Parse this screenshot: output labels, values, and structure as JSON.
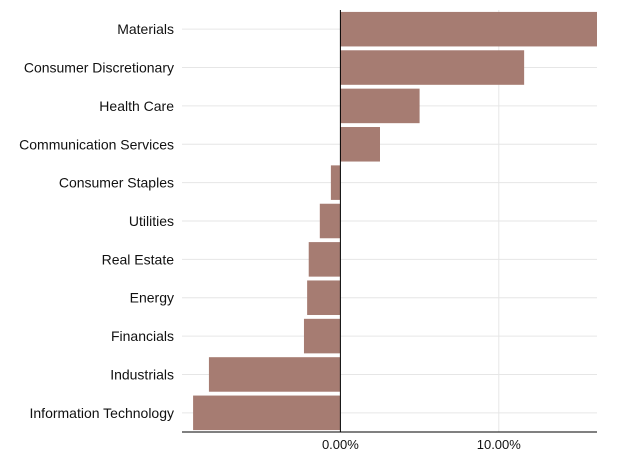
{
  "chart_data": {
    "type": "bar",
    "orientation": "horizontal",
    "categories": [
      "Materials",
      "Consumer Discretionary",
      "Health Care",
      "Communication Services",
      "Consumer Staples",
      "Utilities",
      "Real Estate",
      "Energy",
      "Financials",
      "Industrials",
      "Information Technology"
    ],
    "values": [
      16.2,
      11.6,
      5.0,
      2.5,
      -0.6,
      -1.3,
      -2.0,
      -2.1,
      -2.3,
      -8.3,
      -9.3
    ],
    "xlim": [
      -10.0,
      16.2
    ],
    "xticks": [
      {
        "value": 0,
        "label": "0.00%"
      },
      {
        "value": 10,
        "label": "10.00%"
      }
    ],
    "title": "",
    "xlabel": "",
    "ylabel": "",
    "grid": "vertical and horizontal, light gray",
    "legend": "none",
    "bar_color": "#a67c72",
    "zero_line_color": "#000000",
    "axis_color": "#000000",
    "grid_color": "#e6e6e6"
  }
}
